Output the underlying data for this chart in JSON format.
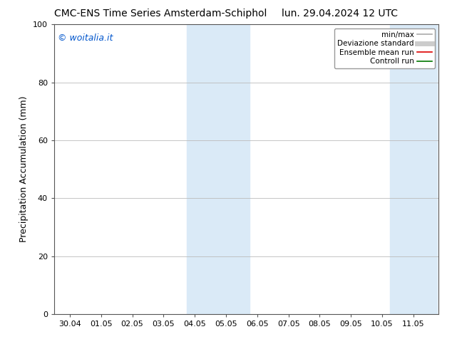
{
  "title_left": "CMC-ENS Time Series Amsterdam-Schiphol",
  "title_right": "lun. 29.04.2024 12 UTC",
  "ylabel": "Precipitation Accumulation (mm)",
  "watermark": "© woitalia.it",
  "watermark_color": "#0055cc",
  "ylim": [
    0,
    100
  ],
  "yticks": [
    0,
    20,
    40,
    60,
    80,
    100
  ],
  "x_labels": [
    "30.04",
    "01.05",
    "02.05",
    "03.05",
    "04.05",
    "05.05",
    "06.05",
    "07.05",
    "08.05",
    "09.05",
    "10.05",
    "11.05"
  ],
  "x_positions": [
    0,
    1,
    2,
    3,
    4,
    5,
    6,
    7,
    8,
    9,
    10,
    11
  ],
  "xlim_min": -0.5,
  "xlim_max": 11.8,
  "shaded_groups": [
    {
      "x_start": 3.75,
      "x_end": 5.75,
      "color": "#daeaf7"
    },
    {
      "x_start": 10.25,
      "x_end": 11.75,
      "color": "#daeaf7"
    }
  ],
  "legend_entries": [
    {
      "label": "min/max",
      "color": "#aaaaaa",
      "linewidth": 1.2
    },
    {
      "label": "Deviazione standard",
      "color": "#cccccc",
      "linewidth": 5
    },
    {
      "label": "Ensemble mean run",
      "color": "#dd0000",
      "linewidth": 1.2
    },
    {
      "label": "Controll run",
      "color": "#007700",
      "linewidth": 1.2
    }
  ],
  "background_color": "#ffffff",
  "grid_color": "#bbbbbb",
  "title_fontsize": 10,
  "label_fontsize": 9,
  "tick_fontsize": 8,
  "watermark_fontsize": 9
}
